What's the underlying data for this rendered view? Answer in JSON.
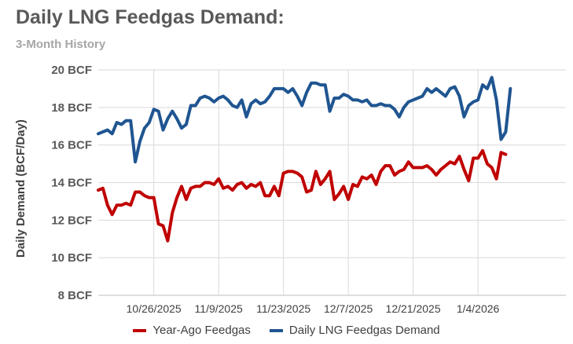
{
  "title": "Daily LNG Feedgas Demand:",
  "subtitle": "3-Month History",
  "colors": {
    "year_ago": "#c00000",
    "current": "#1f5591",
    "grid": "#d9d9d9",
    "axis": "#bfbfbf"
  },
  "chart_data": {
    "type": "line",
    "ylabel": "Daily Demand (BCF/Day)",
    "xlabel": "",
    "ylim": [
      8,
      20
    ],
    "yticks": [
      8,
      10,
      12,
      14,
      16,
      18,
      20
    ],
    "ytick_labels": [
      "8 BCF",
      "10 BCF",
      "12 BCF",
      "14 BCF",
      "16 BCF",
      "18 BCF",
      "20 BCF"
    ],
    "xlim": [
      "2025-10-14",
      "2026-01-23"
    ],
    "xticks": [
      "2025-10-26",
      "2025-11-09",
      "2025-11-23",
      "2025-12-07",
      "2025-12-21",
      "2026-01-04"
    ],
    "xtick_labels": [
      "10/26/2025",
      "11/9/2025",
      "11/23/2025",
      "12/7/2025",
      "12/21/2025",
      "1/4/2026"
    ],
    "grid": true,
    "legend": "bottom",
    "series": [
      {
        "name": "Year-Ago Feedgas",
        "color": "#c00000",
        "x_start": "2025-10-14",
        "values": [
          13.6,
          13.7,
          12.8,
          12.3,
          12.8,
          12.8,
          12.9,
          12.8,
          13.5,
          13.5,
          13.3,
          13.2,
          13.2,
          11.8,
          11.7,
          10.9,
          12.4,
          13.2,
          13.8,
          13.1,
          13.7,
          13.8,
          13.8,
          14.0,
          14.0,
          13.9,
          14.2,
          13.7,
          13.8,
          13.6,
          13.9,
          14.0,
          13.7,
          13.9,
          13.8,
          14.0,
          13.3,
          13.3,
          13.8,
          13.3,
          14.5,
          14.6,
          14.6,
          14.5,
          14.3,
          13.5,
          13.6,
          14.6,
          13.9,
          14.2,
          14.6,
          13.1,
          13.4,
          13.8,
          13.1,
          13.9,
          13.8,
          14.3,
          14.2,
          14.4,
          13.9,
          14.6,
          14.9,
          14.9,
          14.4,
          14.6,
          14.7,
          15.1,
          14.8,
          14.8,
          14.8,
          14.9,
          14.7,
          14.4,
          14.7,
          14.9,
          15.1,
          15.0,
          15.4,
          14.7,
          14.1,
          15.3,
          15.3,
          15.7,
          15.0,
          14.8,
          14.2,
          15.6,
          15.5
        ]
      },
      {
        "name": "Daily LNG Feedgas Demand",
        "color": "#1f5591",
        "x_start": "2025-10-14",
        "values": [
          16.6,
          16.7,
          16.8,
          16.6,
          17.2,
          17.1,
          17.3,
          17.3,
          15.1,
          16.2,
          16.9,
          17.2,
          17.9,
          17.8,
          16.8,
          17.4,
          17.8,
          17.4,
          16.9,
          17.1,
          18.1,
          18.1,
          18.5,
          18.6,
          18.5,
          18.3,
          18.5,
          18.6,
          18.4,
          18.1,
          18.0,
          18.4,
          17.5,
          18.2,
          18.4,
          18.2,
          18.3,
          18.6,
          19.0,
          19.0,
          19.0,
          18.8,
          19.0,
          18.6,
          18.1,
          18.8,
          19.3,
          19.3,
          19.2,
          19.2,
          17.8,
          18.5,
          18.5,
          18.7,
          18.6,
          18.4,
          18.4,
          18.3,
          18.4,
          18.1,
          18.1,
          18.2,
          18.1,
          18.1,
          17.9,
          17.5,
          18.0,
          18.3,
          18.4,
          18.5,
          18.6,
          19.0,
          18.8,
          19.0,
          18.8,
          18.6,
          19.0,
          19.1,
          18.6,
          17.5,
          18.1,
          18.3,
          18.4,
          19.2,
          19.0,
          19.6,
          18.4,
          16.3,
          16.7,
          19.0
        ]
      }
    ]
  }
}
